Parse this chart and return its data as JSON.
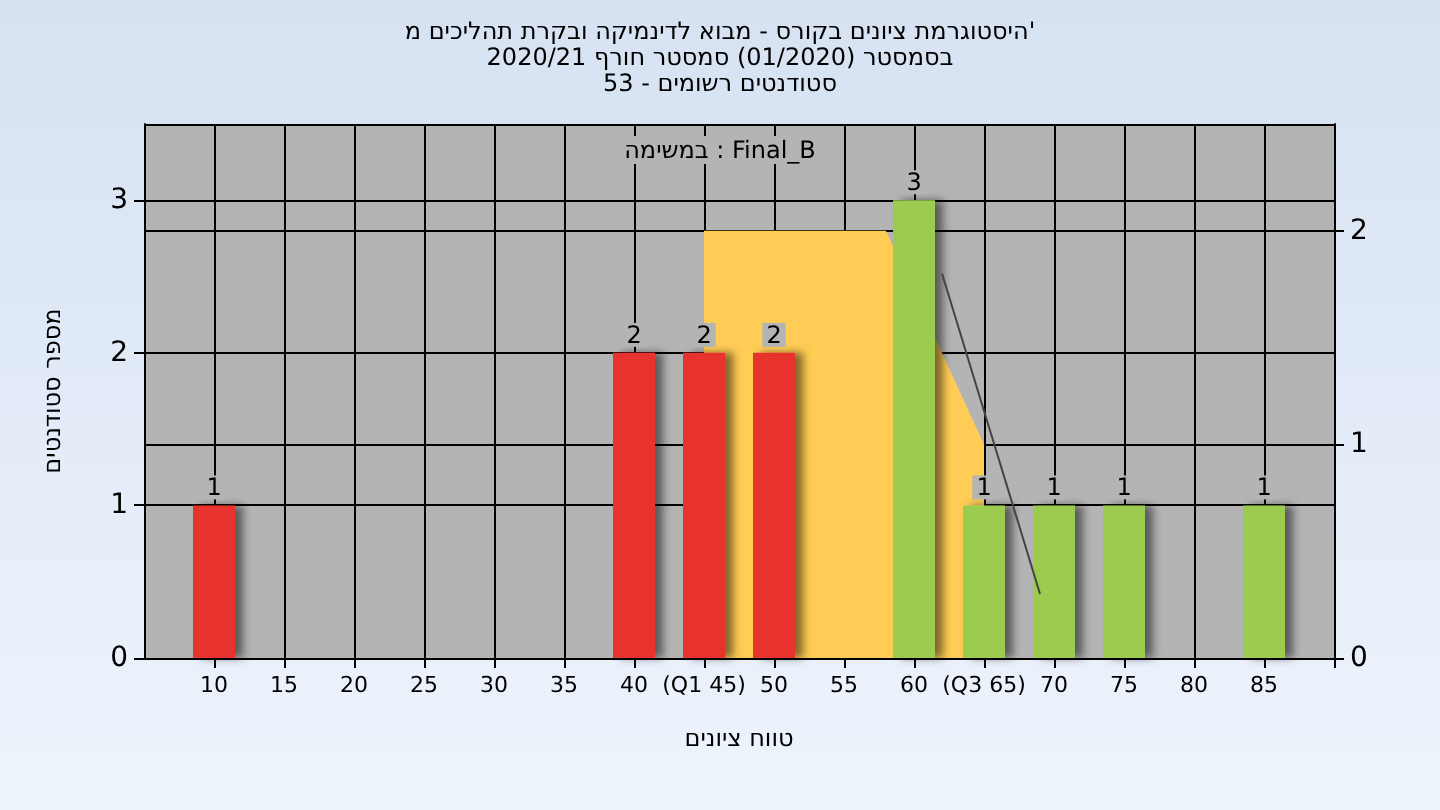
{
  "chart_data": {
    "type": "bar",
    "title": "היסטוגרמת ציונים בקורס - מבוא לדינמיקה ובקרת תהליכים מ'\nבסמסטר (01/2020) סמסטר חורף 2020/21\nסטודנטים רשומים - 53",
    "xlabel": "טווח ציונים",
    "ylabel": "מספר סטודנטים",
    "annotations": [
      "במשימה : Final_B"
    ],
    "x": [
      10,
      40,
      45,
      50,
      60,
      65,
      70,
      75,
      85
    ],
    "values": [
      1,
      2,
      2,
      2,
      3,
      1,
      1,
      1,
      1
    ],
    "colors": [
      "#e8302f",
      "#e8302f",
      "#e8302f",
      "#e8302f",
      "#9ccc50",
      "#9ccc50",
      "#9ccc50",
      "#9ccc50",
      "#9ccc50"
    ],
    "value_labels": [
      "1",
      "2",
      "2",
      "2",
      "3",
      "1",
      "1",
      "1",
      "1"
    ],
    "series": [
      {
        "type": "area",
        "axis": "y2",
        "color": "#ffcc55",
        "x": [
          45,
          58,
          65
        ],
        "values": [
          2,
          2,
          1
        ]
      },
      {
        "type": "line",
        "axis": "y2",
        "color": "#444444",
        "x": [
          62,
          69
        ],
        "values": [
          1.8,
          0.3
        ]
      }
    ],
    "xlim": [
      5,
      90
    ],
    "xticks": [
      10,
      15,
      20,
      25,
      30,
      35,
      40,
      {
        "value": 45,
        "label": "(Q1 45)"
      },
      50,
      55,
      60,
      {
        "value": 65,
        "label": "(Q3 65)"
      },
      70,
      75,
      80,
      85,
      {
        "value": 90,
        "label": null
      }
    ],
    "ylim": [
      0,
      3.5
    ],
    "yticks": [
      0,
      1,
      2,
      3
    ],
    "y2lim": [
      0,
      2.5
    ],
    "y2ticks": [
      0,
      1,
      2
    ],
    "grid": true
  }
}
